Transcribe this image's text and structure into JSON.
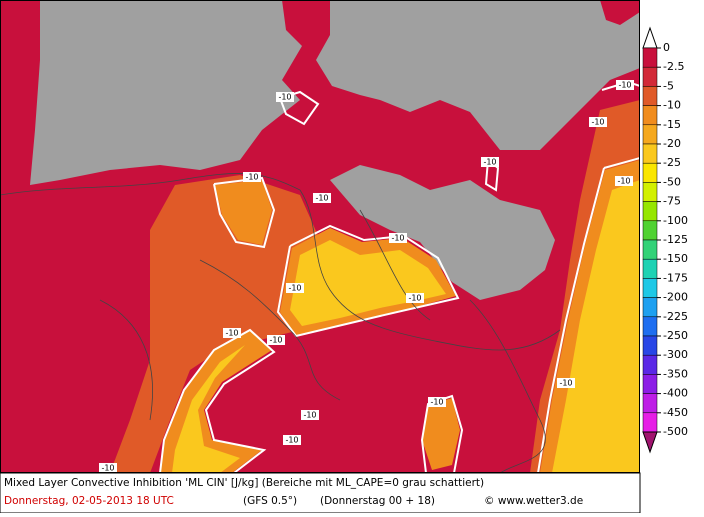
{
  "legend": {
    "labels": [
      "0",
      "-2.5",
      "-5",
      "-10",
      "-15",
      "-20",
      "-25",
      "-50",
      "-75",
      "-100",
      "-125",
      "-150",
      "-175",
      "-200",
      "-225",
      "-250",
      "-300",
      "-350",
      "-400",
      "-450",
      "-500"
    ],
    "colors": [
      "#ffffff",
      "#c8103c",
      "#d22a38",
      "#e05a28",
      "#f08c1e",
      "#f5a81e",
      "#fac81e",
      "#fae600",
      "#d2f000",
      "#96e600",
      "#50d232",
      "#32d278",
      "#1ed2b4",
      "#1ec8e6",
      "#1ea0f0",
      "#1e6ef0",
      "#2846e6",
      "#5a28e6",
      "#8c1ee6",
      "#be1ee6",
      "#e61ee6",
      "#a0146e"
    ]
  },
  "contour_labels": [
    "-10",
    "-10",
    "-10",
    "-10",
    "-10",
    "-10",
    "-10",
    "-10",
    "-10",
    "-10",
    "-10",
    "-10",
    "-10",
    "-10",
    "-10",
    "-10",
    "-10"
  ],
  "caption": {
    "line1": "Mixed Layer Convective Inhibition 'ML CIN' [J/kg] (Bereiche mit ML_CAPE=0 grau schattiert)",
    "date": "Donnerstag, 02-05-2013  18 UTC",
    "model": "(GFS 0.5°)",
    "run": "(Donnerstag 00 + 18)",
    "credit": "© www.wetter3.de"
  }
}
